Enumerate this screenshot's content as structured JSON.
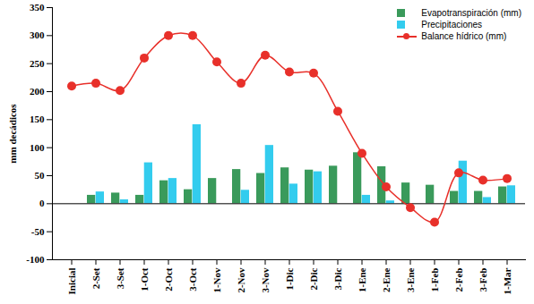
{
  "chart_data": {
    "type": "combo",
    "y_label": "mm decádicos",
    "categories": [
      "Inicial",
      "2-Set",
      "3-Set",
      "1-Oct",
      "2-Oct",
      "3-Oct",
      "1-Nov",
      "2-Nov",
      "3-Nov",
      "1-Dic",
      "2-Dic",
      "3-Dic",
      "1-Ene",
      "2-Ene",
      "3-Ene",
      "1-Feb",
      "2-Feb",
      "3-Feb",
      "1-Mar"
    ],
    "series": [
      {
        "name": "Evapotranspiración (mm)",
        "type": "bar",
        "color": "#3a9a5b",
        "values": [
          null,
          15,
          19,
          15,
          41,
          25,
          45,
          61,
          54,
          64,
          60,
          67,
          91,
          66,
          37,
          33,
          22,
          22,
          30
        ]
      },
      {
        "name": "Precipitaciones",
        "type": "bar",
        "color": "#33ccee",
        "values": [
          null,
          21,
          7,
          73,
          45,
          141,
          0,
          24,
          104,
          35,
          57,
          0,
          15,
          5,
          0,
          0,
          76,
          11,
          32
        ]
      },
      {
        "name": "Balance hídrico (mm)",
        "type": "line",
        "color": "#e8302a",
        "marker": "circle",
        "line_style": "solid",
        "values": [
          210,
          215,
          202,
          260,
          300,
          300,
          253,
          215,
          265,
          235,
          233,
          165,
          90,
          30,
          -7,
          -33,
          55,
          42,
          45
        ]
      }
    ],
    "ylim": [
      -100,
      350
    ],
    "yticks": [
      -100,
      -50,
      0,
      50,
      100,
      150,
      200,
      250,
      300,
      350
    ],
    "grid": false,
    "legend": "top-right"
  }
}
